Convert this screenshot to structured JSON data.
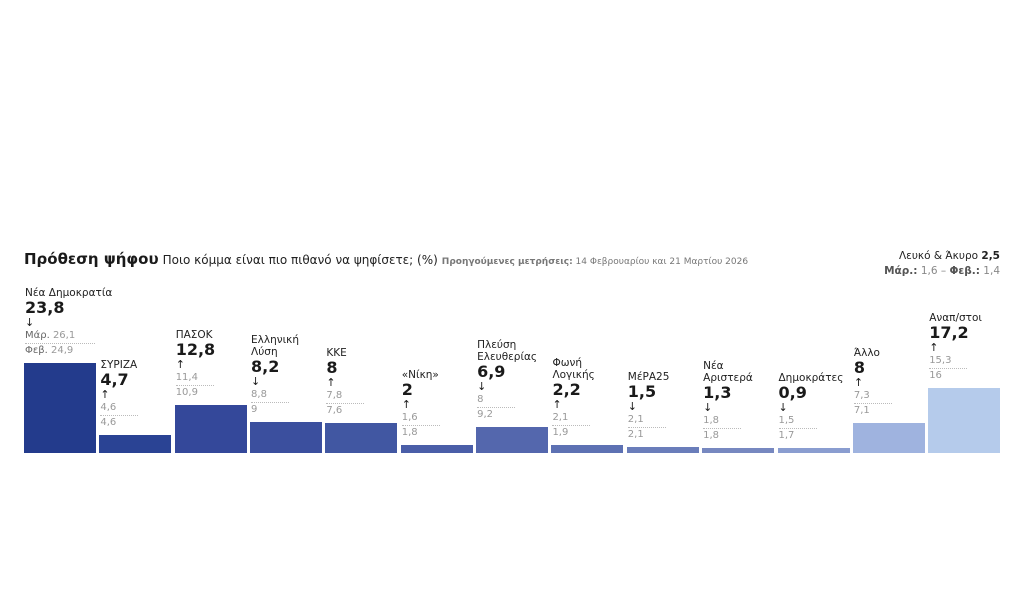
{
  "header": {
    "title": "Πρόθεση ψήφου",
    "question": "Ποιο κόμμα είναι πιο πιθανό να ψηφίσετε; (%)",
    "previous_label": "Προηγούμενες μετρήσεις:",
    "previous_dates": "14 Φεβρουαρίου και 21 Μαρτίου 2026"
  },
  "blank_void": {
    "label": "Λευκό & Άκυρο",
    "value": "2,5",
    "mar_label": "Μάρ.:",
    "mar_value": "1,6",
    "sep": "–",
    "feb_label": "Φεβ.:",
    "feb_value": "1,4"
  },
  "chart_data": {
    "type": "bar",
    "ylim": [
      0,
      23.8
    ],
    "grid": false,
    "prefix_labels": {
      "mar": "Μάρ.",
      "feb": "Φεβ."
    },
    "categories": [
      "Νέα Δημοκρατία",
      "ΣΥΡΙΖΑ",
      "ΠΑΣΟΚ",
      "Ελληνική Λύση",
      "ΚΚΕ",
      "«Νίκη»",
      "Πλεύση Ελευθερίας",
      "Φωνή Λογικής",
      "ΜέΡΑ25",
      "Νέα Αριστερά",
      "Δημοκράτες",
      "Άλλο",
      "Αναπ/στοι"
    ],
    "name_lines": [
      [
        "Νέα Δημοκρατία"
      ],
      [
        "ΣΥΡΙΖΑ"
      ],
      [
        "ΠΑΣΟΚ"
      ],
      [
        "Ελληνική",
        "Λύση"
      ],
      [
        "ΚΚΕ"
      ],
      [
        "«Νίκη»"
      ],
      [
        "Πλεύση",
        "Ελευθερίας"
      ],
      [
        "Φωνή",
        "Λογικής"
      ],
      [
        "ΜέΡΑ25"
      ],
      [
        "Νέα",
        "Αριστερά"
      ],
      [
        "Δημοκράτες"
      ],
      [
        "Άλλο"
      ],
      [
        "Αναπ/στοι"
      ]
    ],
    "values": [
      23.8,
      4.7,
      12.8,
      8.2,
      8,
      2,
      6.9,
      2.2,
      1.5,
      1.3,
      0.9,
      8,
      17.2
    ],
    "value_labels": [
      "23,8",
      "4,7",
      "12,8",
      "8,2",
      "8",
      "2",
      "6,9",
      "2,2",
      "1,5",
      "1,3",
      "0,9",
      "8",
      "17,2"
    ],
    "trend": [
      "down",
      "up",
      "up",
      "down",
      "up",
      "up",
      "down",
      "up",
      "down",
      "down",
      "down",
      "up",
      "up"
    ],
    "trend_arrows": [
      "↓",
      "↑",
      "↑",
      "↓",
      "↑",
      "↑",
      "↓",
      "↑",
      "↓",
      "↓",
      "↓",
      "↑",
      "↑"
    ],
    "march": [
      "26,1",
      "4,6",
      "11,4",
      "8,8",
      "7,8",
      "1,6",
      "8",
      "2,1",
      "2,1",
      "1,8",
      "1,5",
      "7,3",
      "15,3"
    ],
    "february": [
      "24,9",
      "4,6",
      "10,9",
      "9",
      "7,6",
      "1,8",
      "9,2",
      "1,9",
      "2,1",
      "1,8",
      "1,7",
      "7,1",
      "16"
    ],
    "colors": [
      "#233b8c",
      "#2a4394",
      "#34489a",
      "#3b4f9e",
      "#4157a2",
      "#4a5ea8",
      "#5467ad",
      "#5d71b3",
      "#6a7dba",
      "#7788c0",
      "#8a9dd0",
      "#9fb3df",
      "#b5cbeb"
    ]
  }
}
